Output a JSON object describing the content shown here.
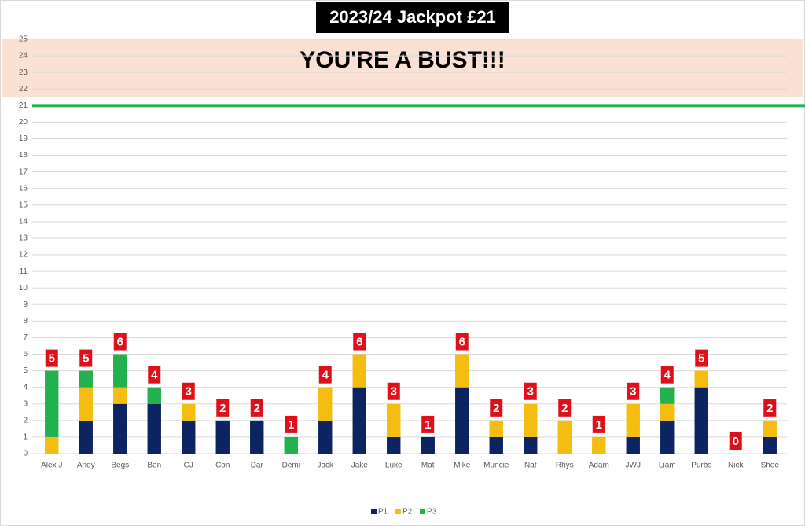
{
  "chart_data": {
    "type": "stacked_bar",
    "title": "2023/24 Jackpot £21",
    "annotation": "YOU'RE A BUST!!!",
    "categories": [
      "Alex J",
      "Andy",
      "Begs",
      "Ben",
      "CJ",
      "Con",
      "Dar",
      "Demi",
      "Jack",
      "Jake",
      "Luke",
      "Mat",
      "Mike",
      "Muncie",
      "Naf",
      "Rhys",
      "Adam",
      "JWJ",
      "Liam",
      "Purbs",
      "Nick",
      "Shee"
    ],
    "series": [
      {
        "name": "P1",
        "color": "#0d2463",
        "values": [
          0,
          2,
          3,
          3,
          2,
          2,
          2,
          0,
          2,
          4,
          1,
          1,
          4,
          1,
          1,
          0,
          0,
          1,
          2,
          4,
          0,
          1
        ]
      },
      {
        "name": "P2",
        "color": "#f5bd0f",
        "values": [
          1,
          2,
          1,
          0,
          1,
          0,
          0,
          0,
          2,
          2,
          2,
          0,
          2,
          1,
          2,
          2,
          1,
          2,
          1,
          1,
          0,
          1
        ]
      },
      {
        "name": "P3",
        "color": "#22b14c",
        "values": [
          4,
          1,
          2,
          1,
          0,
          0,
          0,
          1,
          0,
          0,
          0,
          0,
          0,
          0,
          0,
          0,
          0,
          0,
          1,
          0,
          0,
          0
        ]
      }
    ],
    "totals": [
      5,
      5,
      6,
      4,
      3,
      2,
      2,
      1,
      4,
      6,
      3,
      1,
      6,
      2,
      3,
      2,
      1,
      3,
      4,
      5,
      0,
      2
    ],
    "total_label_color": "#e0101b",
    "jackpot_line": 21,
    "jackpot_line_color": "#22b14c",
    "bust_zone": [
      21.5,
      25
    ],
    "bust_zone_color": "#fbe1d3",
    "ylim": [
      0,
      25
    ],
    "yticks": [
      0,
      1,
      2,
      3,
      4,
      5,
      6,
      7,
      8,
      9,
      10,
      11,
      12,
      13,
      14,
      15,
      16,
      17,
      18,
      19,
      20,
      21,
      22,
      23,
      24,
      25
    ],
    "grid": true,
    "legend": "bottom"
  }
}
